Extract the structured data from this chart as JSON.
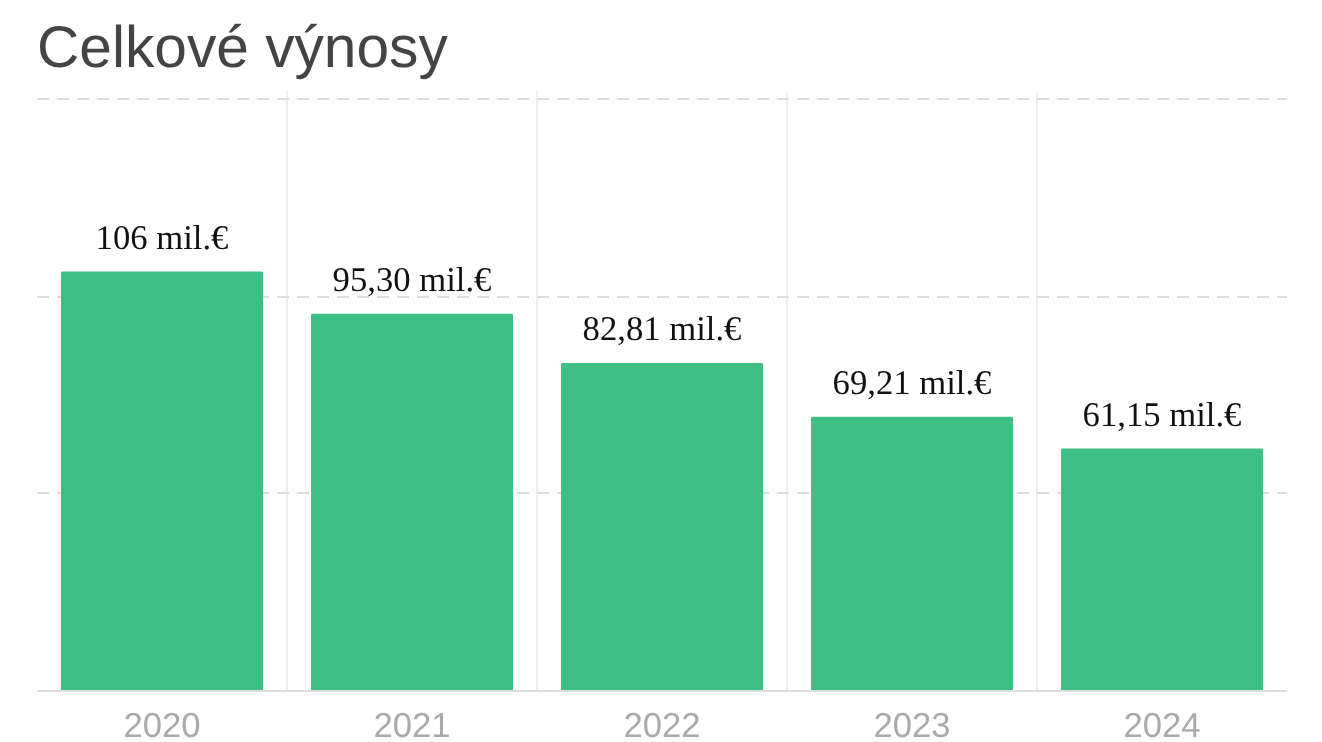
{
  "chart_data": {
    "type": "bar",
    "title": "Celkové výnosy",
    "categories": [
      "2020",
      "2021",
      "2022",
      "2023",
      "2024"
    ],
    "values": [
      106,
      95.3,
      82.81,
      69.21,
      61.15
    ],
    "value_labels": [
      "106 mil.€",
      "95,30 mil.€",
      "82,81 mil.€",
      "69,21 mil.€",
      "61,15 mil.€"
    ],
    "color": "#3dbf86",
    "ylim": [
      0,
      152
    ],
    "yticks": [
      {
        "value": 0,
        "label": null
      },
      {
        "value": 50,
        "label": null
      },
      {
        "value": 100,
        "label": null
      },
      {
        "value": 150,
        "label": null
      }
    ],
    "tick_labels": "x",
    "grid": true
  }
}
